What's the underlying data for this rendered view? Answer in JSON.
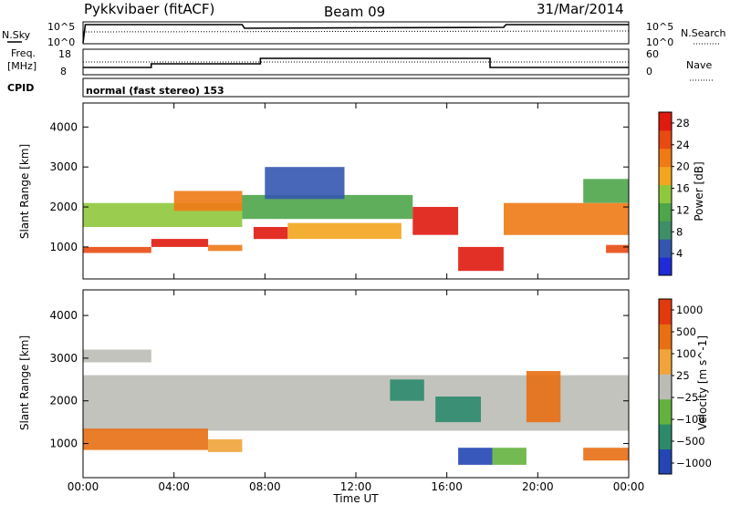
{
  "header": {
    "title": "Pykkvibaer (fitACF)",
    "beam": "Beam 09",
    "date": "31/Mar/2014"
  },
  "labels": {
    "nsky": "N.Sky",
    "nsearch": "N.Search",
    "freq": "Freq.",
    "freq_unit": "[MHz]",
    "nave": "Nave",
    "cpid": "CPID",
    "cpid_value": "normal (fast stereo) 153"
  },
  "noise_panel": {
    "left_ticks": [
      "10^5",
      "10^0"
    ],
    "right_ticks": [
      "10^5",
      "10^0"
    ]
  },
  "freq_panel": {
    "left_ticks": [
      "18",
      "8"
    ],
    "right_ticks": [
      "60",
      "0"
    ]
  },
  "colors": {
    "power": [
      "#1f2bd8",
      "#3556b0",
      "#3e8e68",
      "#4ea54a",
      "#8fc83c",
      "#f3a51e",
      "#f07a15",
      "#e84a12",
      "#e01a0f"
    ],
    "velocity": [
      "#2346b4",
      "#2c8a6b",
      "#63b23e",
      "#bcbcb6",
      "#f0a43a",
      "#e86f12",
      "#e23a0e"
    ]
  },
  "chart_data": {
    "type": "heatmap",
    "xlabel": "Time UT",
    "x_ticks": [
      "00:00",
      "04:00",
      "08:00",
      "12:00",
      "16:00",
      "20:00",
      "00:00"
    ],
    "xlim_hours": [
      0,
      24
    ],
    "panels": [
      {
        "name": "power",
        "ylabel": "Slant Range [km]",
        "ylim": [
          200,
          4600
        ],
        "y_ticks": [
          "1000",
          "2000",
          "3000",
          "4000"
        ],
        "colorbar": {
          "label": "Power [dB]",
          "ticks": [
            "4",
            "8",
            "12",
            "16",
            "20",
            "24",
            "28"
          ],
          "range": [
            0,
            30
          ]
        },
        "bands": [
          {
            "start": 0.0,
            "end": 3.0,
            "r0": 850,
            "r1": 1000,
            "level": 7
          },
          {
            "start": 3.0,
            "end": 5.5,
            "r0": 1000,
            "r1": 1200,
            "level": 8
          },
          {
            "start": 5.5,
            "end": 7.0,
            "r0": 900,
            "r1": 1050,
            "level": 6
          },
          {
            "start": 0.0,
            "end": 7.0,
            "r0": 1500,
            "r1": 2100,
            "level": 4
          },
          {
            "start": 4.0,
            "end": 7.0,
            "r0": 1900,
            "r1": 2400,
            "level": 6
          },
          {
            "start": 7.0,
            "end": 14.5,
            "r0": 1700,
            "r1": 2300,
            "level": 3
          },
          {
            "start": 8.0,
            "end": 11.5,
            "r0": 2200,
            "r1": 3000,
            "level": 1
          },
          {
            "start": 7.5,
            "end": 9.0,
            "r0": 1200,
            "r1": 1500,
            "level": 8
          },
          {
            "start": 9.0,
            "end": 14.0,
            "r0": 1200,
            "r1": 1600,
            "level": 5
          },
          {
            "start": 14.5,
            "end": 16.5,
            "r0": 1300,
            "r1": 2000,
            "level": 8
          },
          {
            "start": 16.5,
            "end": 18.5,
            "r0": 400,
            "r1": 1000,
            "level": 8
          },
          {
            "start": 18.5,
            "end": 24.0,
            "r0": 1300,
            "r1": 2100,
            "level": 6
          },
          {
            "start": 22.0,
            "end": 24.0,
            "r0": 2100,
            "r1": 2700,
            "level": 3
          },
          {
            "start": 23.0,
            "end": 24.0,
            "r0": 850,
            "r1": 1050,
            "level": 7
          }
        ]
      },
      {
        "name": "velocity",
        "ylabel": "Slant Range [km]",
        "ylim": [
          200,
          4600
        ],
        "y_ticks": [
          "1000",
          "2000",
          "3000",
          "4000"
        ],
        "colorbar": {
          "label": "Velocity [m s^-1]",
          "ticks": [
            "1000",
            "500",
            "100",
            "25",
            "−25",
            "−100",
            "−500",
            "−1000"
          ],
          "range": [
            -1000,
            1000
          ]
        },
        "bands": [
          {
            "start": 0.0,
            "end": 24.0,
            "r0": 1300,
            "r1": 2600,
            "level": 3
          },
          {
            "start": 0.0,
            "end": 5.5,
            "r0": 850,
            "r1": 1350,
            "level": 5
          },
          {
            "start": 5.5,
            "end": 7.0,
            "r0": 800,
            "r1": 1100,
            "level": 4
          },
          {
            "start": 0.0,
            "end": 3.0,
            "r0": 2900,
            "r1": 3200,
            "level": 3
          },
          {
            "start": 13.5,
            "end": 15.0,
            "r0": 2000,
            "r1": 2500,
            "level": 1
          },
          {
            "start": 15.5,
            "end": 17.5,
            "r0": 1500,
            "r1": 2100,
            "level": 1
          },
          {
            "start": 16.5,
            "end": 18.0,
            "r0": 500,
            "r1": 900,
            "level": 0
          },
          {
            "start": 18.0,
            "end": 19.5,
            "r0": 500,
            "r1": 900,
            "level": 2
          },
          {
            "start": 19.5,
            "end": 21.0,
            "r0": 1500,
            "r1": 2700,
            "level": 5
          },
          {
            "start": 22.0,
            "end": 24.0,
            "r0": 600,
            "r1": 900,
            "level": 5
          }
        ]
      }
    ]
  }
}
